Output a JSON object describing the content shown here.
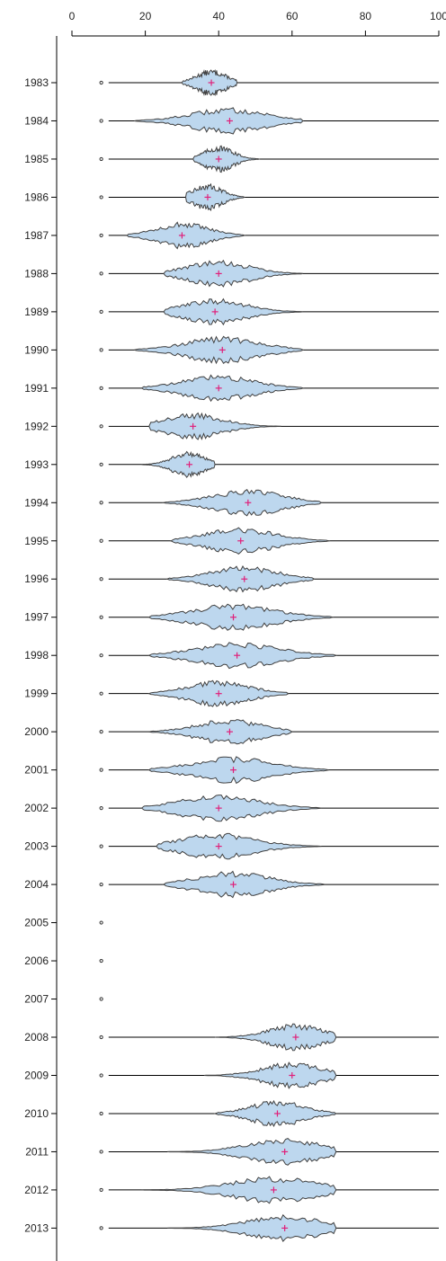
{
  "chart_data": {
    "type": "beanplot",
    "orientation": "horizontal",
    "xlim": [
      0,
      100
    ],
    "x_ticks": [
      0,
      20,
      40,
      60,
      80,
      100
    ],
    "x_tick_labels": [
      "0",
      "20",
      "40",
      "60",
      "80",
      "100"
    ],
    "categories": [
      "1983",
      "1984",
      "1985",
      "1986",
      "1987",
      "1988",
      "1989",
      "1990",
      "1991",
      "1992",
      "1993",
      "1994",
      "1995",
      "1996",
      "1997",
      "1998",
      "1999",
      "2000",
      "2001",
      "2002",
      "2003",
      "2004",
      "2005",
      "2006",
      "2007",
      "2008",
      "2009",
      "2010",
      "2011",
      "2012",
      "2013"
    ],
    "ref_marker_x": 8,
    "means": [
      38,
      43,
      40,
      37,
      30,
      40,
      39,
      41,
      40,
      33,
      32,
      48,
      46,
      47,
      44,
      45,
      40,
      43,
      44,
      40,
      40,
      44,
      null,
      null,
      null,
      61,
      60,
      56,
      58,
      55,
      58
    ],
    "ranges": [
      [
        30,
        45
      ],
      [
        17,
        63
      ],
      [
        33,
        51
      ],
      [
        31,
        47
      ],
      [
        15,
        47
      ],
      [
        25,
        63
      ],
      [
        25,
        63
      ],
      [
        17,
        63
      ],
      [
        19,
        63
      ],
      [
        21,
        57
      ],
      [
        19,
        39
      ],
      [
        25,
        68
      ],
      [
        27,
        70
      ],
      [
        26,
        66
      ],
      [
        21,
        71
      ],
      [
        21,
        72
      ],
      [
        21,
        59
      ],
      [
        21,
        60
      ],
      [
        21,
        70
      ],
      [
        19,
        68
      ],
      [
        23,
        68
      ],
      [
        25,
        69
      ],
      null,
      null,
      null,
      [
        39,
        72
      ],
      [
        36,
        72
      ],
      [
        39,
        72
      ],
      [
        26,
        72
      ],
      [
        19,
        72
      ],
      [
        26,
        72
      ]
    ],
    "colors": {
      "bean_fill": "#bdd7ee",
      "bean_stroke": "#404040",
      "mean_marker": "#e0207a",
      "baseline": "#000000"
    }
  }
}
